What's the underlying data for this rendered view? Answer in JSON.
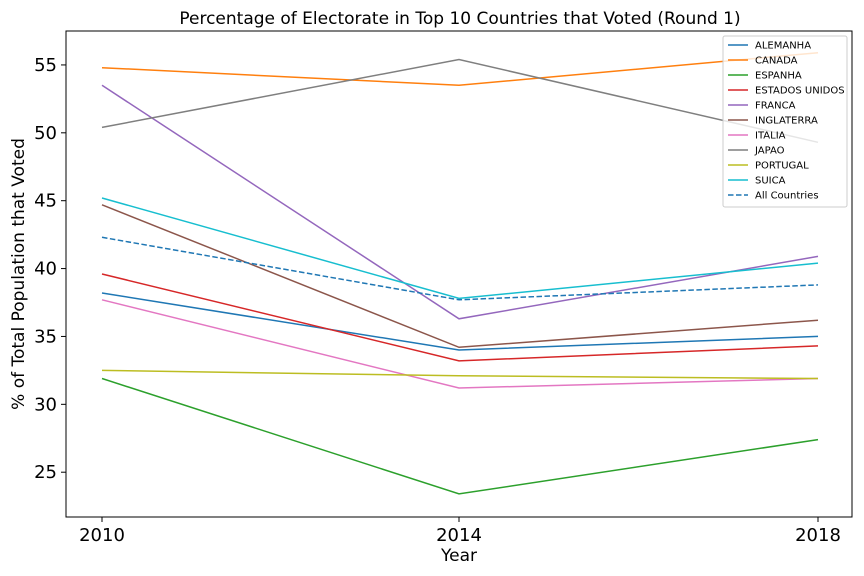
{
  "chart_data": {
    "type": "line",
    "title": "Percentage of Electorate in Top 10 Countries that Voted (Round 1)",
    "xlabel": "Year",
    "ylabel": "% of Total Population that Voted",
    "x": [
      "2010",
      "2014",
      "2018"
    ],
    "ylim": [
      21.7,
      57.5
    ],
    "yticks": [
      25,
      30,
      35,
      40,
      45,
      50,
      55
    ],
    "grid": false,
    "legend_position": "top-right",
    "series": [
      {
        "name": "ALEMANHA",
        "color": "#1f77b4",
        "style": "solid",
        "values": [
          38.2,
          34.0,
          35.0
        ]
      },
      {
        "name": "CANADA",
        "color": "#ff7f0e",
        "style": "solid",
        "values": [
          54.8,
          53.5,
          55.9
        ]
      },
      {
        "name": "ESPANHA",
        "color": "#2ca02c",
        "style": "solid",
        "values": [
          31.9,
          23.4,
          27.4
        ]
      },
      {
        "name": "ESTADOS UNIDOS",
        "color": "#d62728",
        "style": "solid",
        "values": [
          39.6,
          33.2,
          34.3
        ]
      },
      {
        "name": "FRANCA",
        "color": "#9467bd",
        "style": "solid",
        "values": [
          53.5,
          36.3,
          40.9
        ]
      },
      {
        "name": "INGLATERRA",
        "color": "#8c564b",
        "style": "solid",
        "values": [
          44.7,
          34.2,
          36.2
        ]
      },
      {
        "name": "ITALIA",
        "color": "#e377c2",
        "style": "solid",
        "values": [
          37.7,
          31.2,
          31.9
        ]
      },
      {
        "name": "JAPAO",
        "color": "#7f7f7f",
        "style": "solid",
        "values": [
          50.4,
          55.4,
          49.3
        ]
      },
      {
        "name": "PORTUGAL",
        "color": "#bcbd22",
        "style": "solid",
        "values": [
          32.5,
          32.1,
          31.9
        ]
      },
      {
        "name": "SUICA",
        "color": "#17becf",
        "style": "solid",
        "values": [
          45.2,
          37.8,
          40.4
        ]
      },
      {
        "name": "All Countries",
        "color": "#1f77b4",
        "style": "dashed",
        "values": [
          42.3,
          37.7,
          38.8
        ]
      }
    ]
  }
}
